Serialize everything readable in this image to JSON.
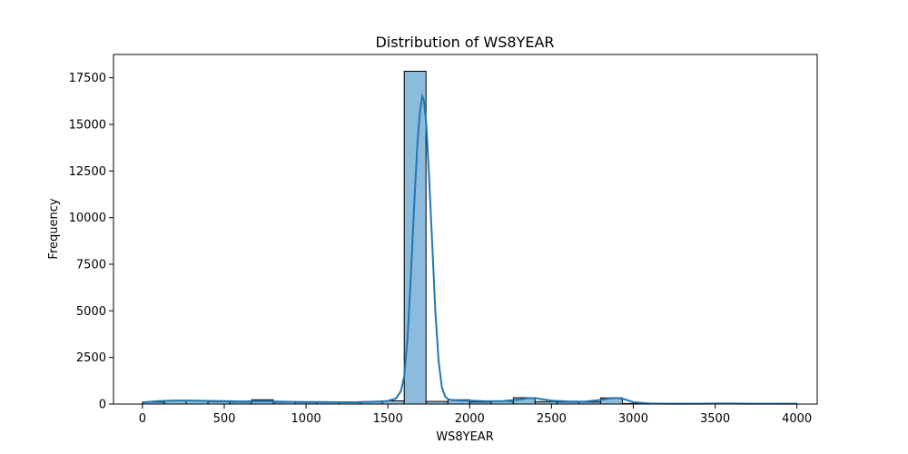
{
  "chart_data": {
    "type": "bar",
    "title": "Distribution of WS8YEAR",
    "xlabel": "WS8YEAR",
    "ylabel": "Frequency",
    "xlim": [
      -177,
      4124
    ],
    "ylim": [
      0,
      18750
    ],
    "x_ticks": [
      0,
      500,
      1000,
      1500,
      2000,
      2500,
      3000,
      3500,
      4000
    ],
    "y_ticks": [
      0,
      2500,
      5000,
      7500,
      10000,
      12500,
      15000,
      17500
    ],
    "grid": false,
    "legend": "none",
    "bar_color": "#8dbbdc",
    "line_color": "#1f77b4",
    "bins": [
      {
        "x0": 0,
        "x1": 133,
        "count": 110
      },
      {
        "x0": 133,
        "x1": 267,
        "count": 190
      },
      {
        "x0": 267,
        "x1": 400,
        "count": 170
      },
      {
        "x0": 400,
        "x1": 533,
        "count": 130
      },
      {
        "x0": 533,
        "x1": 667,
        "count": 110
      },
      {
        "x0": 667,
        "x1": 800,
        "count": 230
      },
      {
        "x0": 800,
        "x1": 933,
        "count": 100
      },
      {
        "x0": 933,
        "x1": 1067,
        "count": 90
      },
      {
        "x0": 1067,
        "x1": 1200,
        "count": 100
      },
      {
        "x0": 1200,
        "x1": 1333,
        "count": 80
      },
      {
        "x0": 1333,
        "x1": 1467,
        "count": 130
      },
      {
        "x0": 1467,
        "x1": 1600,
        "count": 170
      },
      {
        "x0": 1600,
        "x1": 1733,
        "count": 17850
      },
      {
        "x0": 1733,
        "x1": 1867,
        "count": 140
      },
      {
        "x0": 1867,
        "x1": 2000,
        "count": 230
      },
      {
        "x0": 2000,
        "x1": 2133,
        "count": 110
      },
      {
        "x0": 2133,
        "x1": 2267,
        "count": 150
      },
      {
        "x0": 2267,
        "x1": 2400,
        "count": 340
      },
      {
        "x0": 2400,
        "x1": 2533,
        "count": 130
      },
      {
        "x0": 2533,
        "x1": 2667,
        "count": 110
      },
      {
        "x0": 2667,
        "x1": 2800,
        "count": 110
      },
      {
        "x0": 2800,
        "x1": 2933,
        "count": 330
      },
      {
        "x0": 2933,
        "x1": 3067,
        "count": 30
      },
      {
        "x0": 3067,
        "x1": 3200,
        "count": 20
      },
      {
        "x0": 3200,
        "x1": 3333,
        "count": 30
      },
      {
        "x0": 3333,
        "x1": 3467,
        "count": 20
      },
      {
        "x0": 3467,
        "x1": 3600,
        "count": 20
      },
      {
        "x0": 3600,
        "x1": 3733,
        "count": 30
      },
      {
        "x0": 3733,
        "x1": 3867,
        "count": 20
      },
      {
        "x0": 3867,
        "x1": 4000,
        "count": 30
      }
    ],
    "kde": {
      "x": [
        0,
        100,
        200,
        300,
        400,
        500,
        600,
        700,
        800,
        900,
        1000,
        1100,
        1200,
        1300,
        1400,
        1450,
        1500,
        1550,
        1580,
        1600,
        1620,
        1640,
        1660,
        1680,
        1695,
        1710,
        1720,
        1735,
        1750,
        1770,
        1790,
        1810,
        1830,
        1850,
        1870,
        1900,
        1950,
        2000,
        2100,
        2200,
        2300,
        2350,
        2400,
        2450,
        2500,
        2600,
        2700,
        2800,
        2850,
        2900,
        2950,
        3000,
        3100,
        3200,
        3300,
        3400,
        3500,
        3600,
        3700,
        3800,
        3900,
        4000
      ],
      "y": [
        90,
        160,
        190,
        190,
        170,
        160,
        140,
        150,
        140,
        120,
        110,
        110,
        100,
        100,
        120,
        140,
        170,
        300,
        700,
        1500,
        3500,
        6800,
        10500,
        13900,
        15600,
        16500,
        16300,
        15000,
        12500,
        8800,
        5000,
        2300,
        900,
        400,
        250,
        200,
        190,
        180,
        150,
        160,
        240,
        310,
        320,
        250,
        180,
        140,
        130,
        220,
        300,
        330,
        250,
        100,
        30,
        20,
        20,
        20,
        30,
        30,
        20,
        20,
        20,
        20
      ]
    }
  }
}
